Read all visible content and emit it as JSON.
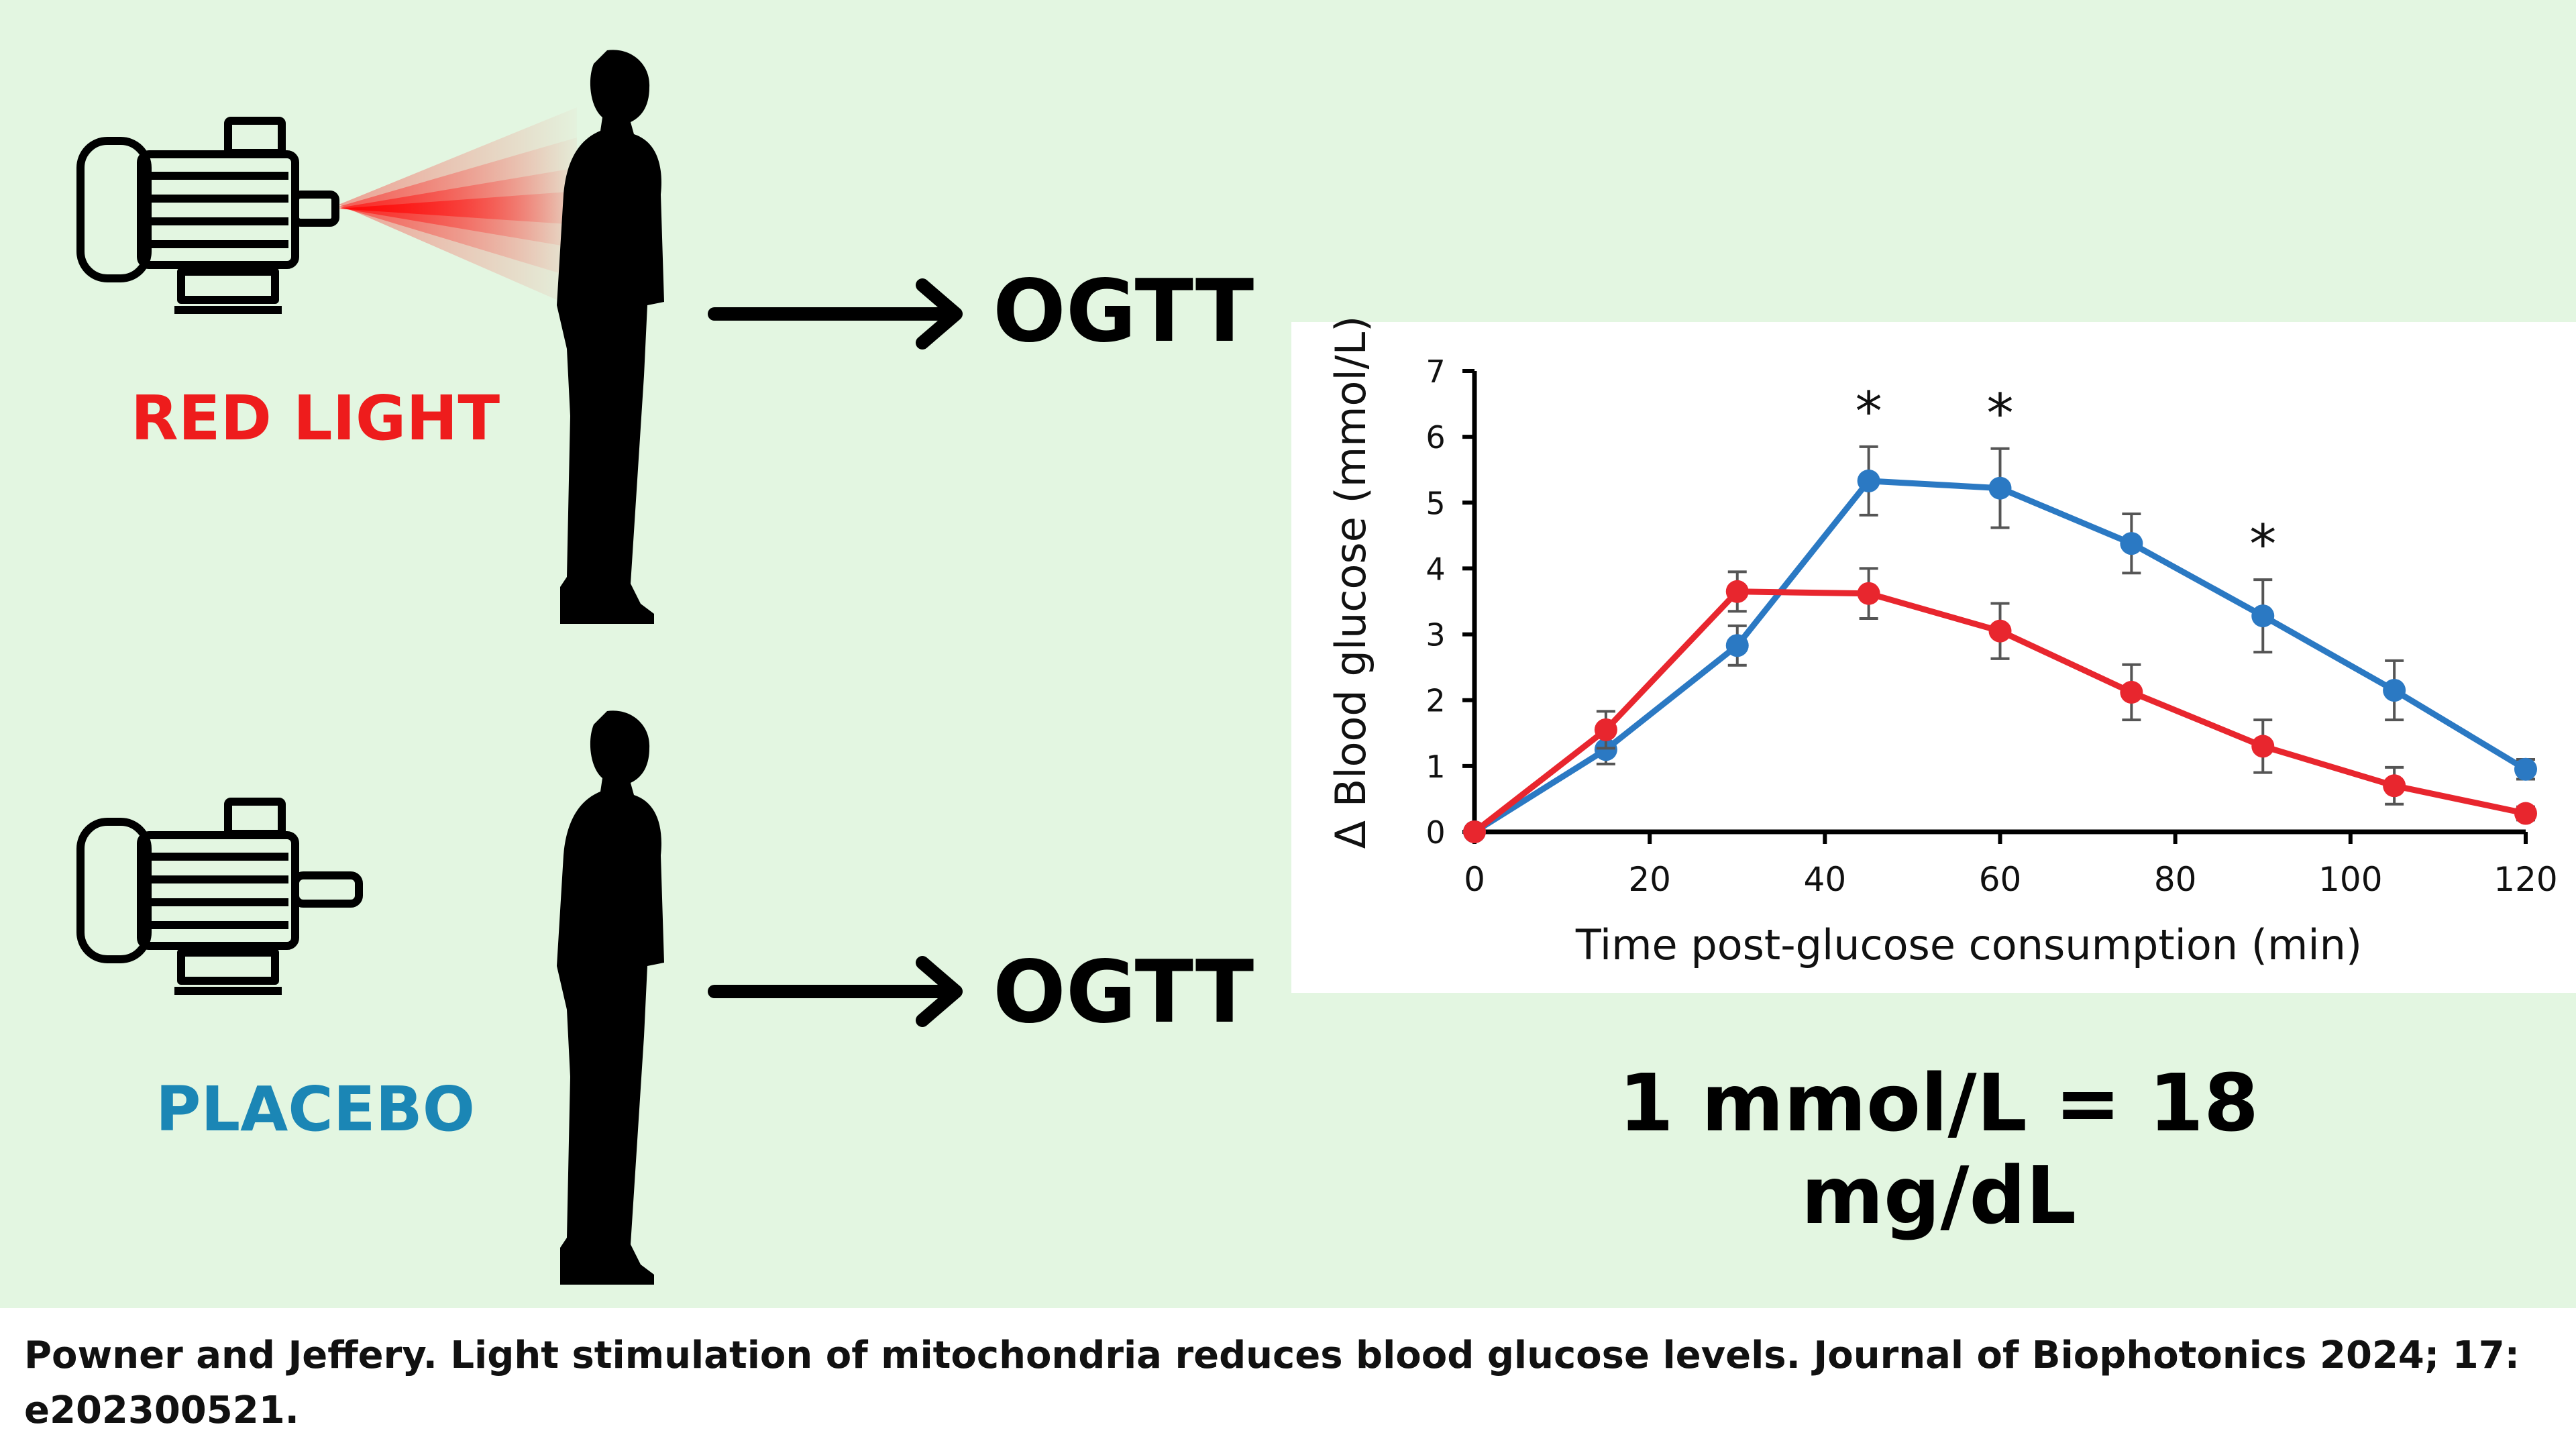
{
  "groups": {
    "treatment_label": "RED LIGHT",
    "control_label": "PLACEBO",
    "test_label_1": "OGTT",
    "test_label_2": "OGTT"
  },
  "conversion_note": "1 mmol/L = 18 mg/dL",
  "citation": "Powner and Jeffery. Light stimulation of mitochondria reduces blood glucose levels. Journal of Biophotonics 2024; 17: e202300521.",
  "colors": {
    "red": "#e8262e",
    "blue": "#2b79c3",
    "bg": "#e3f6e1",
    "red_label": "#ee1c1c",
    "blue_label": "#1b86b5"
  },
  "icons": [
    "light-device-icon",
    "person-silhouette-icon",
    "arrow-right-icon"
  ],
  "chart_data": {
    "type": "line",
    "xlabel": "Time post-glucose consumption (min)",
    "ylabel": "Δ Blood glucose (mmol/L)",
    "xlim": [
      0,
      120
    ],
    "ylim": [
      0,
      7
    ],
    "xticks": [
      0,
      20,
      40,
      60,
      80,
      100,
      120
    ],
    "yticks": [
      0,
      1,
      2,
      3,
      4,
      5,
      6,
      7
    ],
    "x": [
      0,
      15,
      30,
      45,
      60,
      75,
      90,
      105,
      120
    ],
    "series": [
      {
        "name": "Red light",
        "color": "#e8262e",
        "values": [
          0,
          1.55,
          3.65,
          3.62,
          3.05,
          2.12,
          1.3,
          0.7,
          0.28
        ],
        "errors": [
          0,
          0.28,
          0.3,
          0.38,
          0.42,
          0.42,
          0.4,
          0.28,
          0.1
        ]
      },
      {
        "name": "Placebo",
        "color": "#2b79c3",
        "values": [
          0,
          1.25,
          2.83,
          5.33,
          5.22,
          4.38,
          3.28,
          2.15,
          0.95
        ],
        "errors": [
          0,
          0.22,
          0.3,
          0.52,
          0.6,
          0.45,
          0.55,
          0.45,
          0.15
        ]
      }
    ],
    "significance": [
      {
        "x": 45,
        "label": "*"
      },
      {
        "x": 60,
        "label": "*"
      },
      {
        "x": 90,
        "label": "*"
      }
    ]
  }
}
